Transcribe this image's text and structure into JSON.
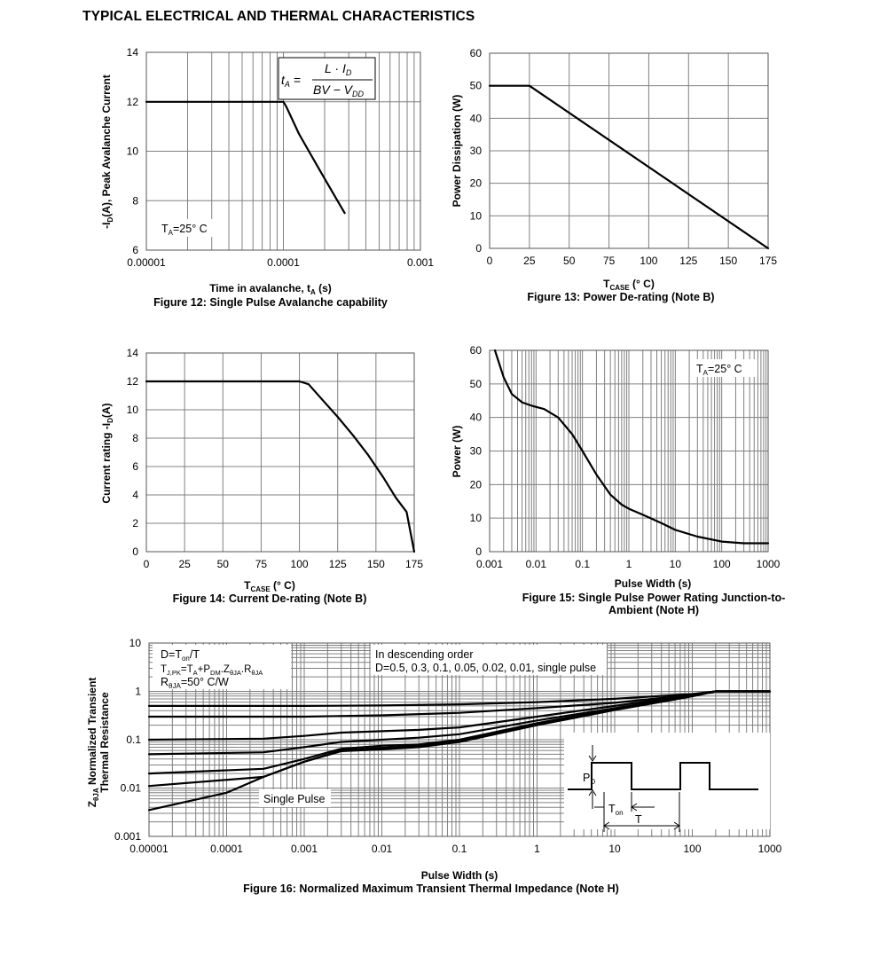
{
  "page_title": "TYPICAL ELECTRICAL AND THERMAL CHARACTERISTICS",
  "chart_data": [
    {
      "id": "fig12",
      "type": "line",
      "title": "Figure 12: Single Pulse Avalanche capability",
      "xlabel": "Time in avalanche, t",
      "xlabel_sub": "A",
      "xlabel_unit": " (s)",
      "ylabel": "-I",
      "ylabel_sub": "D",
      "ylabel_rest": "(A), Peak Avalanche Current",
      "xscale": "log",
      "xlim": [
        1e-05,
        0.001
      ],
      "ylim": [
        6,
        14
      ],
      "xticks": [
        "0.00001",
        "0.0001",
        "0.001"
      ],
      "yticks": [
        "6",
        "8",
        "10",
        "12",
        "14"
      ],
      "grid": true,
      "annotation": {
        "pre": "T",
        "sub": "A",
        "post": "=25° C",
        "position": "bottom-left"
      },
      "formula": {
        "lhs": "t",
        "lhs_sub": "A",
        "num": "L · I",
        "num_sub": "D",
        "den": "BV − V",
        "den_sub": "DD"
      },
      "series": [
        {
          "x": [
            1e-05,
            0.0001,
            0.000105,
            0.00013,
            0.00019,
            0.00028
          ],
          "y": [
            12,
            12,
            11.8,
            10.7,
            9.1,
            7.5
          ]
        }
      ]
    },
    {
      "id": "fig13",
      "type": "line",
      "title": "Figure 13: Power De-rating (Note B)",
      "xlabel": "T",
      "xlabel_sub": "CASE",
      "xlabel_unit": " (° C)",
      "ylabel": "Power Dissipation (W)",
      "xlim": [
        0,
        175
      ],
      "ylim": [
        0,
        60
      ],
      "xticks": [
        "0",
        "25",
        "50",
        "75",
        "100",
        "125",
        "150",
        "175"
      ],
      "yticks": [
        "0",
        "10",
        "20",
        "30",
        "40",
        "50",
        "60"
      ],
      "grid": true,
      "series": [
        {
          "x": [
            0,
            25,
            175
          ],
          "y": [
            50,
            50,
            0
          ]
        }
      ]
    },
    {
      "id": "fig14",
      "type": "line",
      "title": "Figure 14: Current De-rating (Note B)",
      "xlabel": "T",
      "xlabel_sub": "CASE",
      "xlabel_unit": " (° C)",
      "ylabel": "Current rating -I",
      "ylabel_sub": "D",
      "ylabel_rest": "(A)",
      "xlim": [
        0,
        175
      ],
      "ylim": [
        0,
        14
      ],
      "xticks": [
        "0",
        "25",
        "50",
        "75",
        "100",
        "125",
        "150",
        "175"
      ],
      "yticks": [
        "0",
        "2",
        "4",
        "6",
        "8",
        "10",
        "12",
        "14"
      ],
      "grid": true,
      "series": [
        {
          "x": [
            0,
            100,
            106,
            115,
            125,
            135,
            145,
            155,
            163,
            170,
            175
          ],
          "y": [
            12,
            12,
            11.8,
            10.7,
            9.5,
            8.2,
            6.8,
            5.2,
            3.8,
            2.8,
            0
          ]
        }
      ]
    },
    {
      "id": "fig15",
      "type": "line",
      "title": "Figure 15: Single Pulse Power Rating Junction-to-",
      "title_line2": "Ambient (Note H)",
      "xlabel": "Pulse Width (s)",
      "ylabel": "Power (W)",
      "xscale": "log",
      "xlim": [
        0.001,
        1000
      ],
      "ylim": [
        0,
        60
      ],
      "xticks": [
        "0.001",
        "0.01",
        "0.1",
        "1",
        "10",
        "100",
        "1000"
      ],
      "yticks": [
        "0",
        "10",
        "20",
        "30",
        "40",
        "50",
        "60"
      ],
      "grid": true,
      "annotation": {
        "pre": "T",
        "sub": "A",
        "post": "=25° C",
        "position": "top-right"
      },
      "series": [
        {
          "x": [
            0.0013,
            0.002,
            0.003,
            0.005,
            0.008,
            0.015,
            0.03,
            0.06,
            0.1,
            0.2,
            0.4,
            0.7,
            1,
            2,
            5,
            10,
            30,
            100,
            300,
            1000
          ],
          "y": [
            60,
            52,
            47,
            44.5,
            43.5,
            42.5,
            40,
            35,
            30,
            23,
            17,
            14,
            12.8,
            11,
            8.5,
            6.5,
            4.5,
            3,
            2.5,
            2.5
          ]
        }
      ]
    },
    {
      "id": "fig16",
      "type": "line",
      "title": "Figure 16: Normalized Maximum Transient Thermal Impedance (Note H)",
      "xlabel": "Pulse Width (s)",
      "ylabel_line1": "Z",
      "ylabel_sub": "θJA",
      "ylabel_line1_rest": " Normalized Transient",
      "ylabel_line2": "Thermal Resistance",
      "xscale": "log",
      "yscale": "log",
      "xlim": [
        1e-05,
        1000
      ],
      "ylim": [
        0.001,
        10
      ],
      "xticks": [
        "0.00001",
        "0.0001",
        "0.001",
        "0.01",
        "0.1",
        "1",
        "10",
        "100",
        "1000"
      ],
      "yticks": [
        "0.001",
        "0.01",
        "0.1",
        "1",
        "10"
      ],
      "grid": true,
      "legend_box": {
        "line1_pre": "D=T",
        "line1_sub": "on",
        "line1_post": "/T",
        "line2": "T",
        "line2_sub": "J,PK",
        "line2_mid": "=T",
        "line2_sub2": "A",
        "line2_mid2": "+P",
        "line2_sub3": "DM",
        "line2_mid3": ".Z",
        "line2_sub4": "θJA",
        "line2_mid4": ".R",
        "line2_sub5": "θJA",
        "line3_pre": "R",
        "line3_sub": "θJA",
        "line3_post": "=50° C/W"
      },
      "order_note_line1": "In descending order",
      "order_note_line2": "D=0.5, 0.3, 0.1, 0.05, 0.02, 0.01, single pulse",
      "single_pulse_label": "Single Pulse",
      "inset": {
        "pd": "P",
        "pd_sub": "D",
        "ton": "T",
        "ton_sub": "on",
        "t": "T"
      },
      "series": [
        {
          "name": "D=0.5",
          "x": [
            1e-05,
            0.001,
            0.01,
            0.1,
            1,
            10,
            100,
            200,
            1000
          ],
          "y": [
            0.5,
            0.5,
            0.51,
            0.54,
            0.6,
            0.7,
            0.88,
            1,
            1
          ]
        },
        {
          "name": "D=0.3",
          "x": [
            1e-05,
            0.001,
            0.01,
            0.1,
            1,
            10,
            100,
            200,
            1000
          ],
          "y": [
            0.3,
            0.3,
            0.32,
            0.36,
            0.45,
            0.58,
            0.85,
            1,
            1
          ]
        },
        {
          "name": "D=0.1",
          "x": [
            1e-05,
            0.0003,
            0.001,
            0.003,
            0.01,
            0.03,
            0.1,
            1,
            10,
            100,
            200,
            1000
          ],
          "y": [
            0.1,
            0.105,
            0.12,
            0.14,
            0.15,
            0.16,
            0.18,
            0.3,
            0.5,
            0.85,
            1,
            1
          ]
        },
        {
          "name": "D=0.05",
          "x": [
            1e-05,
            0.0003,
            0.001,
            0.003,
            0.01,
            0.03,
            0.1,
            1,
            10,
            100,
            200,
            1000
          ],
          "y": [
            0.05,
            0.055,
            0.07,
            0.09,
            0.1,
            0.11,
            0.13,
            0.25,
            0.45,
            0.82,
            1,
            1
          ]
        },
        {
          "name": "D=0.02",
          "x": [
            1e-05,
            0.0003,
            0.001,
            0.003,
            0.01,
            0.03,
            0.1,
            1,
            10,
            100,
            200,
            1000
          ],
          "y": [
            0.02,
            0.025,
            0.04,
            0.065,
            0.075,
            0.08,
            0.1,
            0.22,
            0.43,
            0.8,
            1,
            1
          ]
        },
        {
          "name": "D=0.01",
          "x": [
            1e-05,
            0.0003,
            0.001,
            0.003,
            0.01,
            0.03,
            0.1,
            1,
            10,
            100,
            200,
            1000
          ],
          "y": [
            0.011,
            0.017,
            0.035,
            0.06,
            0.068,
            0.075,
            0.095,
            0.21,
            0.42,
            0.8,
            1,
            1
          ]
        },
        {
          "name": "single pulse",
          "x": [
            1e-05,
            0.0001,
            0.0003,
            0.001,
            0.003,
            0.01,
            0.03,
            0.1,
            1,
            10,
            100,
            200,
            1000
          ],
          "y": [
            0.0035,
            0.008,
            0.017,
            0.035,
            0.058,
            0.063,
            0.07,
            0.09,
            0.2,
            0.41,
            0.79,
            1,
            1
          ]
        }
      ]
    }
  ]
}
